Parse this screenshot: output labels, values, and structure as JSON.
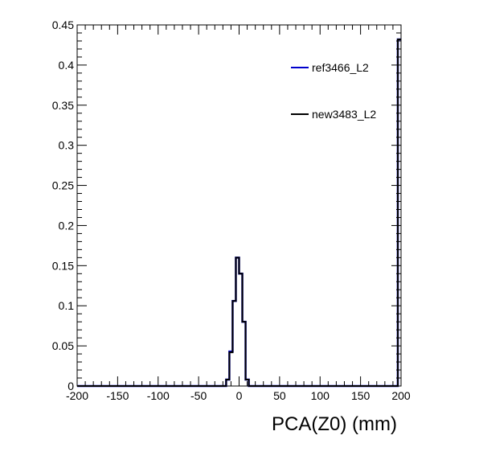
{
  "chart_data": {
    "type": "line",
    "title": "",
    "xlabel": "PCA(Z0) (mm)",
    "ylabel": "",
    "xlim": [
      -200,
      200
    ],
    "ylim": [
      0,
      0.45
    ],
    "x_ticks": [
      -200,
      -150,
      -100,
      -50,
      0,
      50,
      100,
      150,
      200
    ],
    "x_tick_labels": [
      "-200",
      "-150",
      "-100",
      "-50",
      "0",
      "50",
      "100",
      "150",
      "200"
    ],
    "y_ticks": [
      0,
      0.05,
      0.1,
      0.15,
      0.2,
      0.25,
      0.3,
      0.35,
      0.4,
      0.45
    ],
    "y_tick_labels": [
      "0",
      "0.05",
      "0.1",
      "0.15",
      "0.2",
      "0.25",
      "0.3",
      "0.35",
      "0.4",
      "0.45"
    ],
    "grid": false,
    "legend_position": "top-right",
    "bin_edges": [
      -20,
      -16,
      -12,
      -8,
      -4,
      0,
      4,
      8,
      12,
      16
    ],
    "overflow_bin": {
      "x_range": [
        196,
        200
      ],
      "value": 0.432
    },
    "series": [
      {
        "name": "ref3466_L2",
        "color": "#0000cc",
        "values": [
          0.0,
          0.008,
          0.043,
          0.106,
          0.16,
          0.14,
          0.08,
          0.008,
          0.0
        ]
      },
      {
        "name": "new3483_L2",
        "color": "#000000",
        "values": [
          0.0,
          0.008,
          0.042,
          0.106,
          0.16,
          0.14,
          0.08,
          0.008,
          0.0
        ]
      }
    ]
  }
}
